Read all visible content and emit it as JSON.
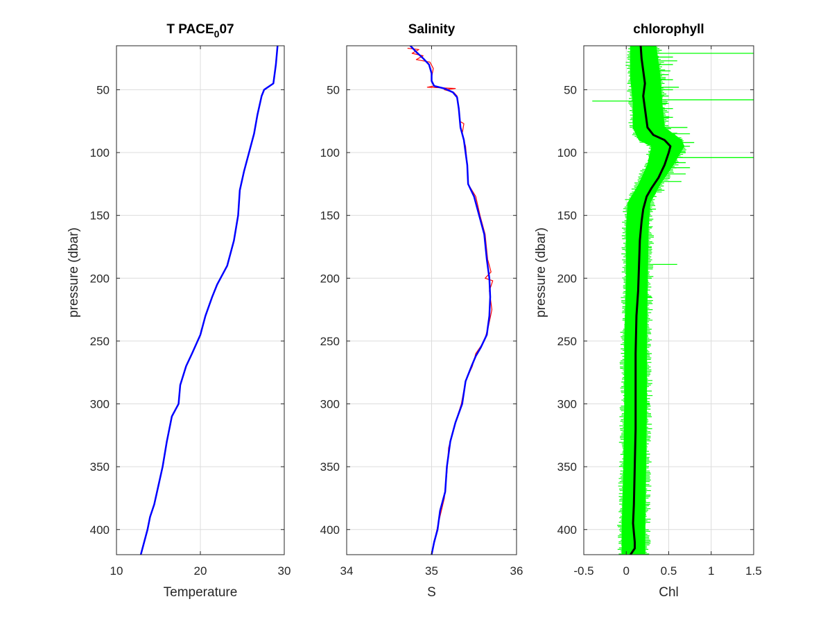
{
  "figure": {
    "background": "#ffffff"
  },
  "chart_data": [
    {
      "type": "line",
      "title": "T PACE",
      "title_subscript": "0",
      "title_suffix": "07",
      "xlabel": "Temperature",
      "ylabel": "pressure (dbar)",
      "xlim": [
        10,
        30
      ],
      "ylim": [
        15,
        420
      ],
      "y_reversed": true,
      "xticks": [
        10,
        20,
        30
      ],
      "yticks": [
        50,
        100,
        150,
        200,
        250,
        300,
        350,
        400
      ],
      "grid": true,
      "series": [
        {
          "color": "#0000ff",
          "width": 2.5,
          "points": [
            [
              29.2,
              15
            ],
            [
              29.0,
              30
            ],
            [
              28.7,
              45
            ],
            [
              27.6,
              50
            ],
            [
              27.3,
              55
            ],
            [
              26.8,
              70
            ],
            [
              26.4,
              85
            ],
            [
              25.8,
              100
            ],
            [
              25.2,
              115
            ],
            [
              24.7,
              130
            ],
            [
              24.5,
              150
            ],
            [
              24.0,
              170
            ],
            [
              23.2,
              190
            ],
            [
              22.4,
              200
            ],
            [
              22.0,
              205
            ],
            [
              21.4,
              215
            ],
            [
              20.6,
              230
            ],
            [
              20.0,
              245
            ],
            [
              19.0,
              260
            ],
            [
              18.3,
              270
            ],
            [
              17.6,
              285
            ],
            [
              17.4,
              300
            ],
            [
              16.6,
              310
            ],
            [
              16.0,
              330
            ],
            [
              15.5,
              350
            ],
            [
              15.0,
              365
            ],
            [
              14.5,
              380
            ],
            [
              14.0,
              390
            ],
            [
              13.7,
              400
            ],
            [
              13.3,
              410
            ],
            [
              12.9,
              420
            ]
          ]
        }
      ]
    },
    {
      "type": "line",
      "title": "Salinity",
      "xlabel": "S",
      "ylabel": "",
      "xlim": [
        34,
        36
      ],
      "ylim": [
        15,
        420
      ],
      "y_reversed": true,
      "xticks": [
        34,
        35,
        36
      ],
      "yticks": [
        50,
        100,
        150,
        200,
        250,
        300,
        350,
        400
      ],
      "grid": true,
      "series": [
        {
          "color": "#ff0000",
          "width": 1.2,
          "points": [
            [
              34.72,
              17
            ],
            [
              34.85,
              18
            ],
            [
              34.77,
              21
            ],
            [
              34.9,
              23
            ],
            [
              34.82,
              26
            ],
            [
              34.98,
              28
            ],
            [
              35.02,
              33
            ],
            [
              35.0,
              40
            ],
            [
              35.0,
              44
            ],
            [
              35.03,
              47
            ],
            [
              34.95,
              48
            ],
            [
              35.28,
              49
            ],
            [
              35.15,
              50
            ],
            [
              35.26,
              52
            ],
            [
              35.3,
              55
            ],
            [
              35.32,
              65
            ],
            [
              35.33,
              75
            ],
            [
              35.38,
              77
            ],
            [
              35.36,
              85
            ],
            [
              35.4,
              95
            ],
            [
              35.42,
              110
            ],
            [
              35.43,
              125
            ],
            [
              35.52,
              135
            ],
            [
              35.57,
              150
            ],
            [
              35.63,
              165
            ],
            [
              35.66,
              185
            ],
            [
              35.7,
              195
            ],
            [
              35.63,
              200
            ],
            [
              35.72,
              202
            ],
            [
              35.68,
              210
            ],
            [
              35.71,
              225
            ],
            [
              35.67,
              238
            ],
            [
              35.62,
              250
            ],
            [
              35.52,
              260
            ],
            [
              35.48,
              270
            ],
            [
              35.4,
              282
            ],
            [
              35.35,
              300
            ],
            [
              35.28,
              315
            ],
            [
              35.2,
              335
            ],
            [
              35.18,
              355
            ],
            [
              35.15,
              375
            ],
            [
              35.08,
              395
            ],
            [
              35.03,
              410
            ],
            [
              35.0,
              420
            ]
          ]
        },
        {
          "color": "#0000ff",
          "width": 2.5,
          "points": [
            [
              34.75,
              15
            ],
            [
              34.82,
              20
            ],
            [
              34.9,
              25
            ],
            [
              34.97,
              30
            ],
            [
              35.0,
              37
            ],
            [
              35.0,
              43
            ],
            [
              35.03,
              47
            ],
            [
              35.15,
              49
            ],
            [
              35.25,
              52
            ],
            [
              35.3,
              56
            ],
            [
              35.32,
              65
            ],
            [
              35.34,
              80
            ],
            [
              35.38,
              90
            ],
            [
              35.4,
              100
            ],
            [
              35.42,
              110
            ],
            [
              35.43,
              125
            ],
            [
              35.5,
              135
            ],
            [
              35.56,
              150
            ],
            [
              35.62,
              165
            ],
            [
              35.65,
              185
            ],
            [
              35.68,
              200
            ],
            [
              35.69,
              215
            ],
            [
              35.68,
              230
            ],
            [
              35.65,
              245
            ],
            [
              35.58,
              255
            ],
            [
              35.52,
              262
            ],
            [
              35.47,
              270
            ],
            [
              35.4,
              282
            ],
            [
              35.36,
              300
            ],
            [
              35.28,
              315
            ],
            [
              35.22,
              330
            ],
            [
              35.18,
              350
            ],
            [
              35.16,
              370
            ],
            [
              35.1,
              385
            ],
            [
              35.07,
              400
            ],
            [
              35.03,
              410
            ],
            [
              35.0,
              420
            ]
          ]
        }
      ]
    },
    {
      "type": "line",
      "title": "chlorophyll",
      "xlabel": "Chl",
      "ylabel": "pressure (dbar)",
      "xlim": [
        -0.5,
        1.5
      ],
      "ylim": [
        15,
        420
      ],
      "y_reversed": true,
      "xticks": [
        -0.5,
        0,
        0.5,
        1,
        1.5
      ],
      "xtick_labels": [
        "-0.5",
        "0",
        "0.5",
        "1",
        "1.5"
      ],
      "yticks": [
        50,
        100,
        150,
        200,
        250,
        300,
        350,
        400
      ],
      "grid": true,
      "band": {
        "color": "#00ff00",
        "min": [
          [
            0.05,
            15
          ],
          [
            0.05,
            40
          ],
          [
            0.08,
            60
          ],
          [
            0.08,
            80
          ],
          [
            0.15,
            90
          ],
          [
            0.3,
            95
          ],
          [
            0.25,
            110
          ],
          [
            0.15,
            125
          ],
          [
            0.02,
            140
          ],
          [
            0.0,
            160
          ],
          [
            0.0,
            200
          ],
          [
            -0.02,
            250
          ],
          [
            -0.02,
            300
          ],
          [
            -0.03,
            350
          ],
          [
            -0.05,
            400
          ],
          [
            -0.05,
            420
          ]
        ],
        "max": [
          [
            0.35,
            15
          ],
          [
            0.4,
            40
          ],
          [
            0.42,
            60
          ],
          [
            0.45,
            80
          ],
          [
            0.65,
            90
          ],
          [
            0.68,
            95
          ],
          [
            0.55,
            110
          ],
          [
            0.4,
            125
          ],
          [
            0.28,
            140
          ],
          [
            0.26,
            160
          ],
          [
            0.25,
            200
          ],
          [
            0.24,
            250
          ],
          [
            0.24,
            300
          ],
          [
            0.23,
            350
          ],
          [
            0.22,
            400
          ],
          [
            0.22,
            420
          ]
        ],
        "spikes": [
          [
            21,
            1.5
          ],
          [
            24,
            0.55
          ],
          [
            27,
            0.6
          ],
          [
            30,
            0.55
          ],
          [
            35,
            0.52
          ],
          [
            38,
            0.5
          ],
          [
            42,
            0.55
          ],
          [
            48,
            0.62
          ],
          [
            50,
            0.55
          ],
          [
            55,
            0.5
          ],
          [
            58,
            1.5
          ],
          [
            59,
            -0.4
          ],
          [
            61,
            0.5
          ],
          [
            65,
            0.55
          ],
          [
            72,
            0.55
          ],
          [
            80,
            0.72
          ],
          [
            85,
            0.75
          ],
          [
            88,
            0.6
          ],
          [
            92,
            0.8
          ],
          [
            95,
            0.75
          ],
          [
            100,
            0.7
          ],
          [
            104,
            1.5
          ],
          [
            108,
            0.7
          ],
          [
            112,
            0.75
          ],
          [
            117,
            0.7
          ],
          [
            123,
            0.65
          ],
          [
            130,
            0.45
          ],
          [
            145,
            0.35
          ],
          [
            160,
            0.3
          ],
          [
            175,
            0.3
          ],
          [
            189,
            0.6
          ],
          [
            200,
            0.3
          ],
          [
            215,
            0.3
          ],
          [
            260,
            0.3
          ],
          [
            300,
            0.28
          ],
          [
            340,
            0.28
          ],
          [
            380,
            0.28
          ],
          [
            410,
            0.27
          ]
        ]
      },
      "series": [
        {
          "color": "#000000",
          "width": 3,
          "points": [
            [
              0.17,
              15
            ],
            [
              0.18,
              25
            ],
            [
              0.2,
              35
            ],
            [
              0.22,
              45
            ],
            [
              0.2,
              55
            ],
            [
              0.22,
              65
            ],
            [
              0.25,
              80
            ],
            [
              0.32,
              86
            ],
            [
              0.45,
              90
            ],
            [
              0.52,
              95
            ],
            [
              0.5,
              100
            ],
            [
              0.45,
              110
            ],
            [
              0.38,
              120
            ],
            [
              0.3,
              128
            ],
            [
              0.24,
              135
            ],
            [
              0.2,
              145
            ],
            [
              0.18,
              155
            ],
            [
              0.16,
              170
            ],
            [
              0.15,
              190
            ],
            [
              0.14,
              210
            ],
            [
              0.12,
              230
            ],
            [
              0.11,
              260
            ],
            [
              0.11,
              290
            ],
            [
              0.11,
              320
            ],
            [
              0.1,
              350
            ],
            [
              0.09,
              380
            ],
            [
              0.08,
              395
            ],
            [
              0.1,
              410
            ],
            [
              0.1,
              415
            ],
            [
              0.05,
              420
            ]
          ]
        }
      ]
    }
  ]
}
